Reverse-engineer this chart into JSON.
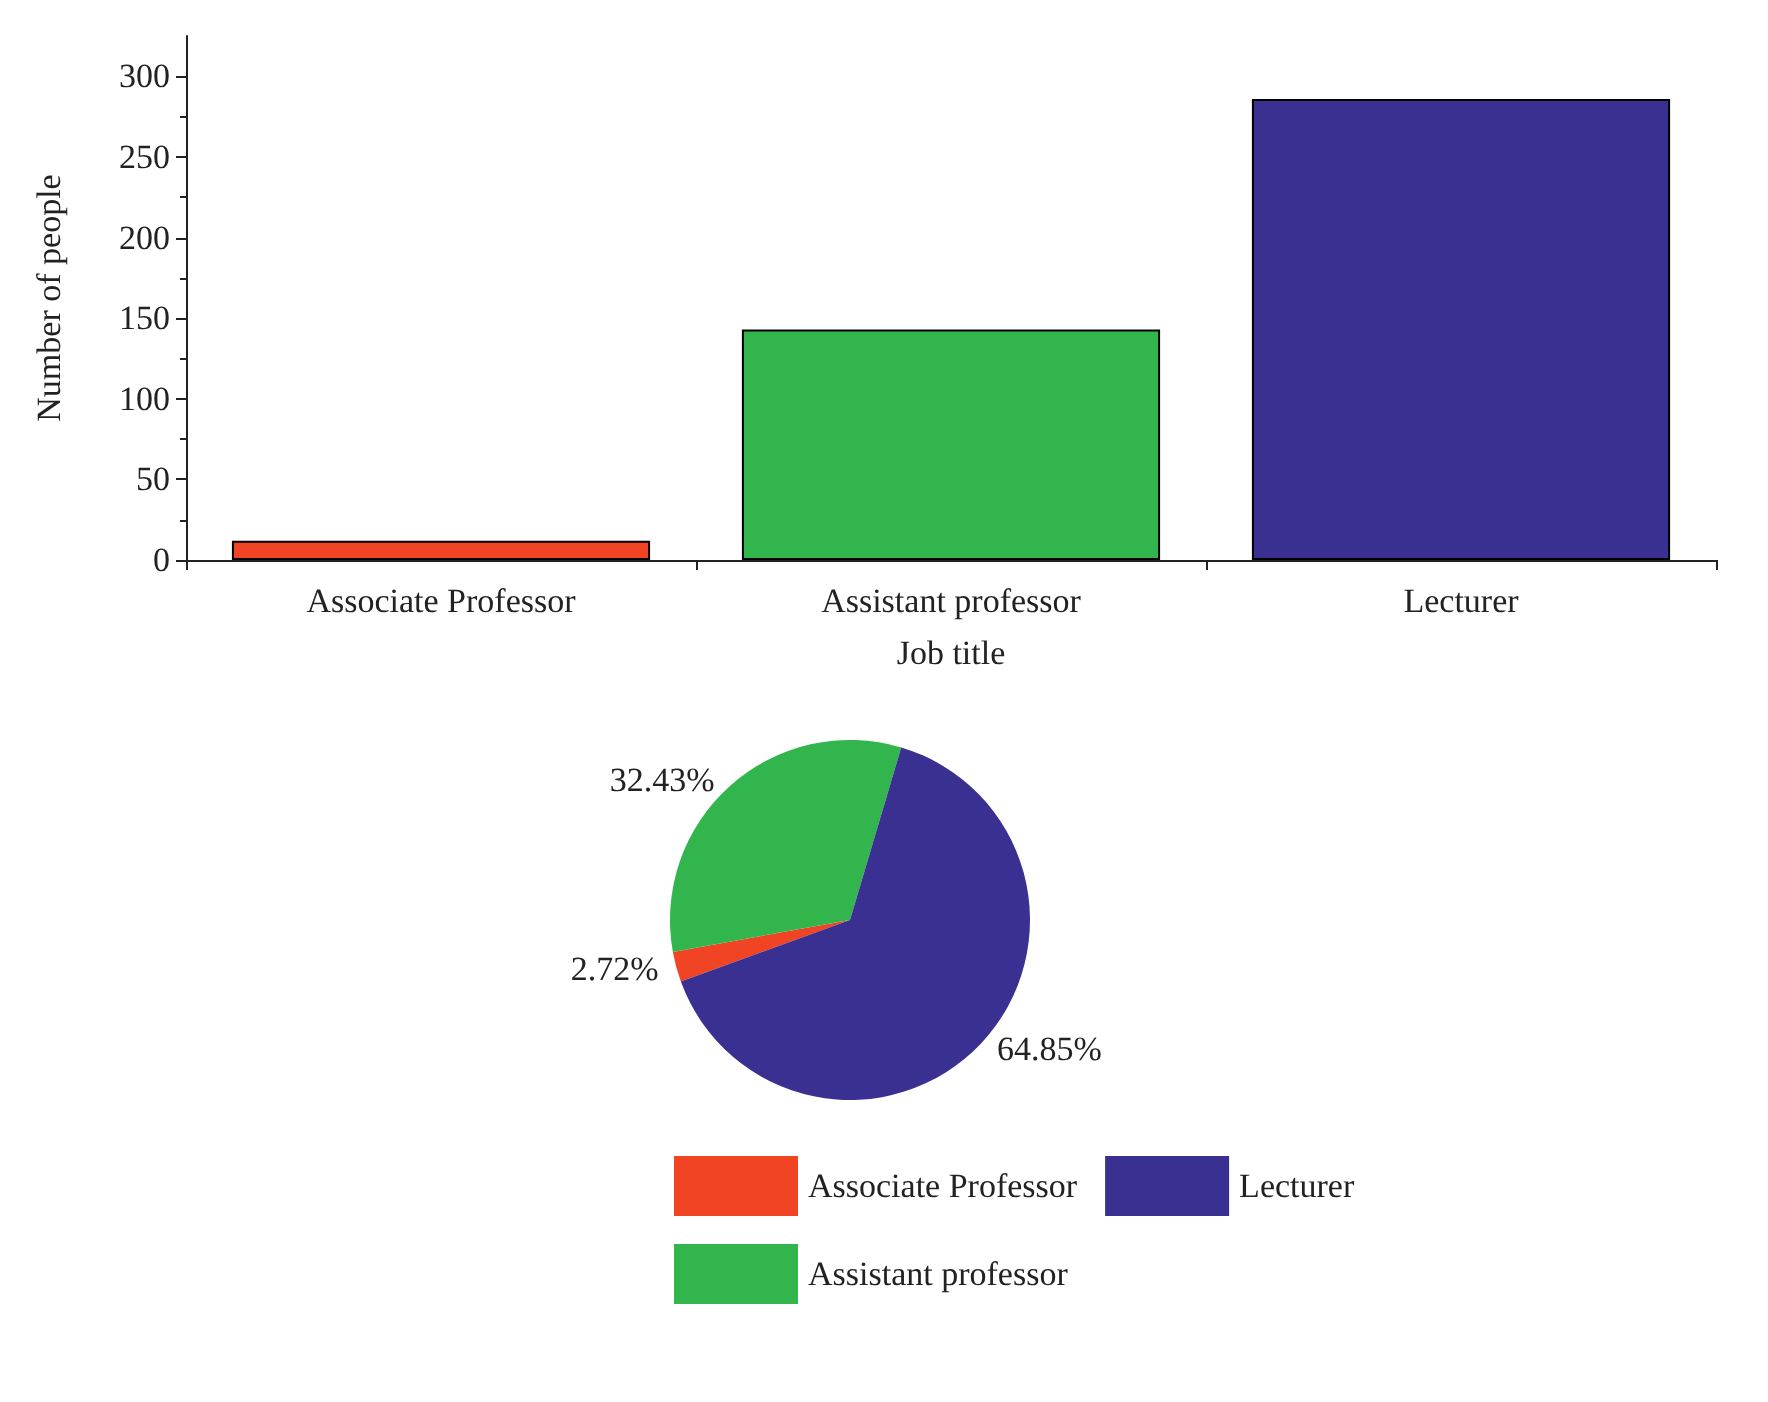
{
  "chart_data": [
    {
      "type": "bar",
      "xlabel": "Job title",
      "ylabel": "Number of people",
      "categories": [
        "Associate Professor",
        "Assistant professor",
        "Lecturer"
      ],
      "series": [
        {
          "values": [
            12,
            143,
            286
          ],
          "colors": [
            "#f04425",
            "#33b54e",
            "#3a3091"
          ]
        }
      ],
      "ylim": [
        0,
        325
      ],
      "yticks": [
        0,
        50,
        100,
        150,
        200,
        250,
        300
      ],
      "grid": false,
      "legend": false
    },
    {
      "type": "pie",
      "categories": [
        "Associate Professor",
        "Assistant professor",
        "Lecturer"
      ],
      "values": [
        2.72,
        32.43,
        64.85
      ],
      "colors": [
        "#f04425",
        "#33b54e",
        "#3a3091"
      ],
      "value_labels": [
        "2.72%",
        "32.43%",
        "64.85%"
      ],
      "legend": "bottom"
    }
  ]
}
